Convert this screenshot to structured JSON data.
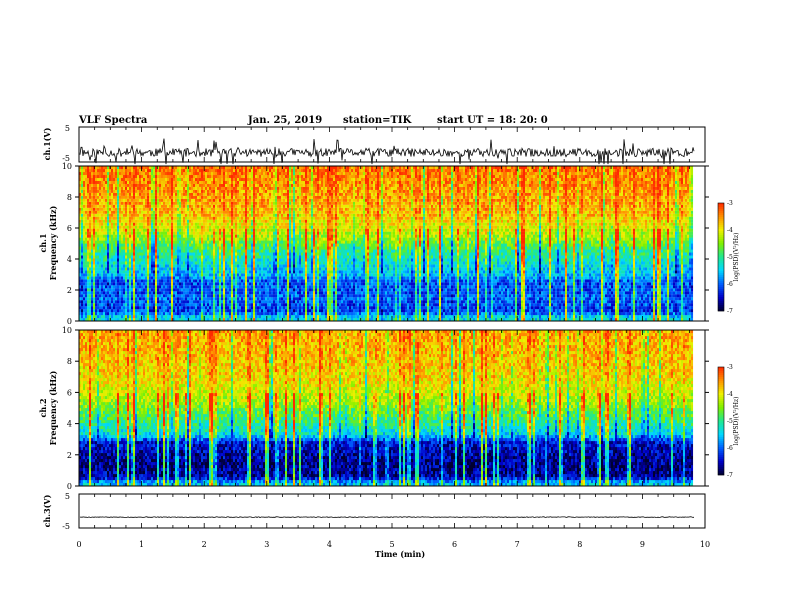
{
  "header": {
    "title": "VLF Spectra",
    "date": "Jan. 25, 2019",
    "station": "station=TIK",
    "start": "start UT =  18: 20: 0"
  },
  "chart_data": [
    {
      "panel": "ch1-waveform",
      "type": "line",
      "ylabel": "ch.1(V)",
      "ylim": [
        -5,
        5
      ],
      "yticks": [
        "5",
        "-5"
      ],
      "xlim": [
        0,
        10
      ],
      "x_end": 9.83,
      "baseline": -2.3,
      "noise_amplitude": 1.2,
      "spike_amplitude": 4.5,
      "seed": 11
    },
    {
      "panel": "ch1-spectrogram",
      "type": "heatmap",
      "ylabel": "ch.1\nFrequency (kHz)",
      "ylim": [
        0,
        10
      ],
      "yticks": [
        "0",
        "2",
        "4",
        "6",
        "8",
        "10"
      ],
      "xlim": [
        0,
        10
      ],
      "x_end": 9.83,
      "zlim": [
        -7,
        -3
      ],
      "colorbar_label": "log(PSD)(V²/Hz)",
      "colorbar_ticks": [
        "-3",
        "-4",
        "-5",
        "-6",
        "-7"
      ],
      "profile": [
        {
          "f": 0.0,
          "v": -5.3
        },
        {
          "f": 0.3,
          "v": -5.5
        },
        {
          "f": 0.6,
          "v": -6.2
        },
        {
          "f": 1.5,
          "v": -6.0
        },
        {
          "f": 2.5,
          "v": -6.1
        },
        {
          "f": 3.0,
          "v": -5.6
        },
        {
          "f": 4.5,
          "v": -5.0
        },
        {
          "f": 5.5,
          "v": -4.3
        },
        {
          "f": 7.0,
          "v": -3.7
        },
        {
          "f": 10.0,
          "v": -3.4
        }
      ],
      "seed": 23
    },
    {
      "panel": "ch2-spectrogram",
      "type": "heatmap",
      "ylabel": "ch.2\nFrequency (kHz)",
      "ylim": [
        0,
        10
      ],
      "yticks": [
        "0",
        "2",
        "4",
        "6",
        "8",
        "10"
      ],
      "xlim": [
        0,
        10
      ],
      "x_end": 9.83,
      "zlim": [
        -7,
        -3
      ],
      "colorbar_label": "log(PSD)(V²/Hz)",
      "colorbar_ticks": [
        "-3",
        "-4",
        "-5",
        "-6",
        "-7"
      ],
      "profile": [
        {
          "f": 0.0,
          "v": -5.4
        },
        {
          "f": 0.3,
          "v": -5.8
        },
        {
          "f": 0.6,
          "v": -6.6
        },
        {
          "f": 1.5,
          "v": -6.7
        },
        {
          "f": 2.8,
          "v": -6.4
        },
        {
          "f": 3.3,
          "v": -5.4
        },
        {
          "f": 4.5,
          "v": -4.8
        },
        {
          "f": 5.5,
          "v": -4.3
        },
        {
          "f": 7.0,
          "v": -3.9
        },
        {
          "f": 10.0,
          "v": -3.6
        }
      ],
      "seed": 37
    },
    {
      "panel": "ch3-waveform",
      "type": "line",
      "ylabel": "ch.3(V)",
      "ylim": [
        -5,
        5
      ],
      "yticks": [
        "5",
        "-5"
      ],
      "xlim": [
        0,
        10
      ],
      "x_end": 9.83,
      "baseline": -1.8,
      "noise_amplitude": 0.1,
      "spike_amplitude": 0,
      "seed": 5
    }
  ],
  "xaxis": {
    "label": "Time (min)",
    "ticks": [
      "0",
      "1",
      "2",
      "3",
      "4",
      "5",
      "6",
      "7",
      "8",
      "9",
      "10"
    ]
  },
  "colormap": [
    "#000030",
    "#0000c8",
    "#0060ff",
    "#00d8ff",
    "#20e890",
    "#80f000",
    "#f0f000",
    "#ff9000",
    "#ff2a00"
  ]
}
